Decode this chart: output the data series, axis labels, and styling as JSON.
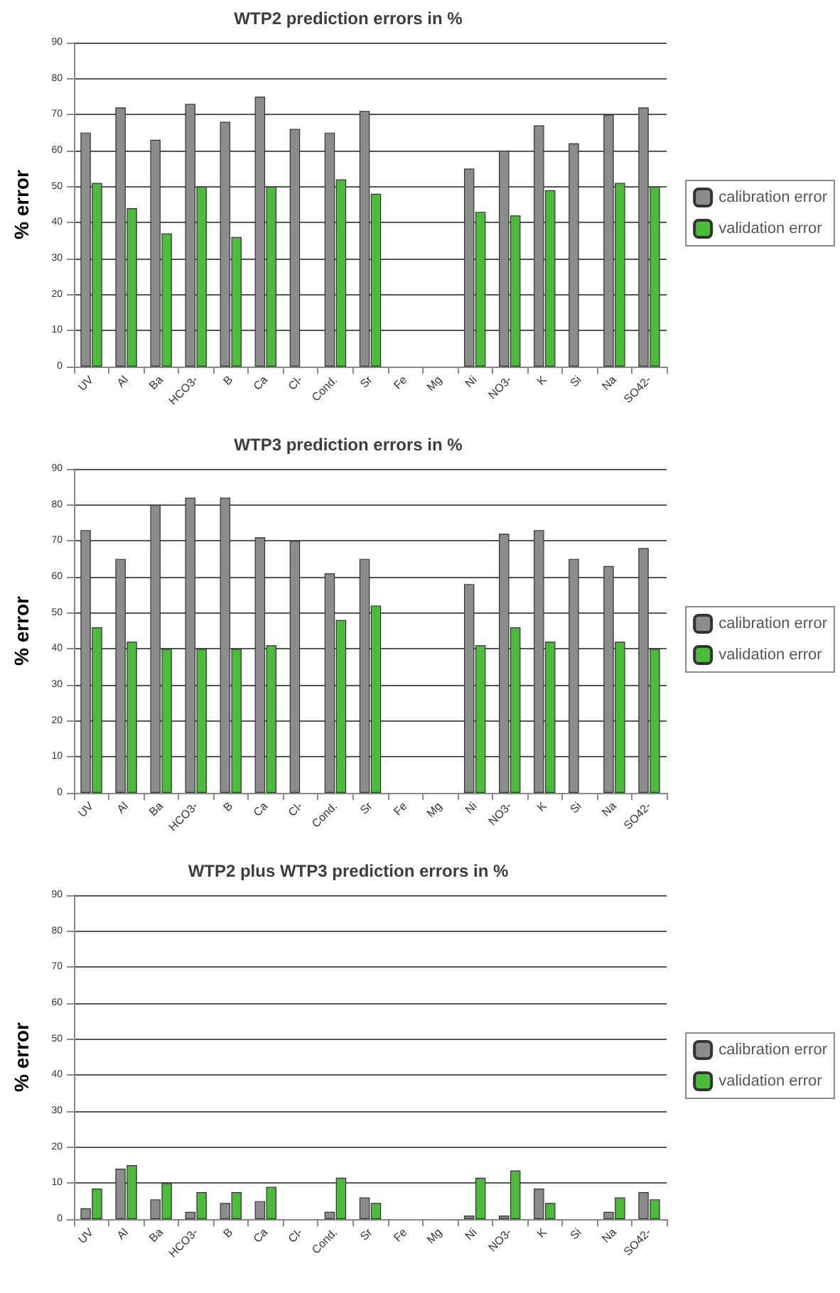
{
  "chart_data": [
    {
      "type": "bar",
      "title": "WTP2 prediction errors in %",
      "ylabel": "% error",
      "categories": [
        "UV",
        "Al",
        "Ba",
        "HCO3-",
        "B",
        "Ca",
        "Cl-",
        "Cond.",
        "Sr",
        "Fe",
        "Mg",
        "Ni",
        "NO3-",
        "K",
        "Si",
        "Na",
        "SO42-"
      ],
      "series": [
        {
          "name": "calibration error",
          "color": "#8c8c8c",
          "values": [
            65,
            72,
            63,
            73,
            68,
            75,
            66,
            65,
            71,
            null,
            null,
            55,
            60,
            67,
            62,
            70,
            72
          ]
        },
        {
          "name": "validation error",
          "color": "#4cbb3c",
          "values": [
            51,
            44,
            37,
            50,
            36,
            50,
            null,
            52,
            48,
            null,
            null,
            43,
            42,
            49,
            null,
            51,
            50
          ]
        }
      ],
      "ylim": [
        0,
        90
      ],
      "yticks": [
        0,
        10,
        20,
        30,
        40,
        50,
        60,
        70,
        80,
        90
      ],
      "grid": "y",
      "legend": "right"
    },
    {
      "type": "bar",
      "title": "WTP3 prediction errors in %",
      "ylabel": "% error",
      "categories": [
        "UV",
        "Al",
        "Ba",
        "HCO3-",
        "B",
        "Ca",
        "Cl-",
        "Cond.",
        "Sr",
        "Fe",
        "Mg",
        "Ni",
        "NO3-",
        "K",
        "Si",
        "Na",
        "SO42-"
      ],
      "series": [
        {
          "name": "calibration error",
          "color": "#8c8c8c",
          "values": [
            73,
            65,
            80,
            82,
            82,
            71,
            70,
            61,
            65,
            null,
            null,
            58,
            72,
            73,
            65,
            63,
            68
          ]
        },
        {
          "name": "validation error",
          "color": "#4cbb3c",
          "values": [
            46,
            42,
            40,
            40,
            40,
            41,
            null,
            48,
            52,
            null,
            null,
            41,
            46,
            42,
            null,
            42,
            40
          ]
        }
      ],
      "ylim": [
        0,
        90
      ],
      "yticks": [
        0,
        10,
        20,
        30,
        40,
        50,
        60,
        70,
        80,
        90
      ],
      "grid": "y",
      "legend": "right"
    },
    {
      "type": "bar",
      "title": "WTP2 plus WTP3 prediction errors in %",
      "ylabel": "% error",
      "categories": [
        "UV",
        "Al",
        "Ba",
        "HCO3-",
        "B",
        "Ca",
        "Cl-",
        "Cond.",
        "Sr",
        "Fe",
        "Mg",
        "Ni",
        "NO3-",
        "K",
        "Si",
        "Na",
        "SO42-"
      ],
      "series": [
        {
          "name": "calibration error",
          "color": "#8c8c8c",
          "values": [
            3,
            14,
            5.5,
            2,
            4.5,
            5,
            null,
            2,
            6,
            null,
            null,
            1,
            1,
            8.5,
            null,
            2,
            7.5
          ]
        },
        {
          "name": "validation error",
          "color": "#4cbb3c",
          "values": [
            8.5,
            15,
            10,
            7.5,
            7.5,
            9,
            null,
            11.5,
            4.5,
            null,
            null,
            11.5,
            13.5,
            4.5,
            null,
            6,
            5.5
          ]
        }
      ],
      "ylim": [
        0,
        90
      ],
      "yticks": [
        0,
        10,
        20,
        30,
        40,
        50,
        60,
        70,
        80,
        90
      ],
      "grid": "y",
      "legend": "right"
    }
  ]
}
